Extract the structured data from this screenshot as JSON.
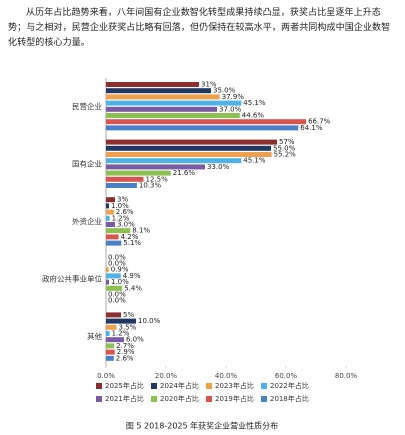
{
  "paragraph": "从历年占比趋势来看，八年间国有企业数智化转型成果持续凸显，获奖占比呈逐年上升态势；与之相对，民营企业获奖占比略有回落，但仍保持在较高水平，两者共同构成中国企业数智化转型的核心力量。",
  "chart_data": {
    "type": "hbar",
    "categories": [
      "民营企业",
      "国有企业",
      "外资企业",
      "政府公共事业单位",
      "其他"
    ],
    "xlim": [
      0,
      80
    ],
    "xticks": [
      {
        "value": 0,
        "label": "0.0%"
      },
      {
        "value": 20,
        "label": "20.0%"
      },
      {
        "value": 40,
        "label": "40.0%"
      },
      {
        "value": 60,
        "label": "60.0%"
      },
      {
        "value": 80,
        "label": "80.0%"
      }
    ],
    "series": [
      {
        "name": "2025年占比",
        "color": "#8b2f2f",
        "values": [
          31,
          57,
          3,
          0,
          5
        ],
        "value_labels": [
          "31%",
          "57%",
          "3%",
          "0.0%",
          "5%"
        ]
      },
      {
        "name": "2024年占比",
        "color": "#1f3864",
        "values": [
          35.0,
          55.0,
          1.0,
          0.0,
          10.0
        ],
        "value_labels": [
          "35.0%",
          "55.0%",
          "1.0%",
          "0.0%",
          "10.0%"
        ]
      },
      {
        "name": "2023年占比",
        "color": "#f0a04b",
        "values": [
          37.9,
          55.2,
          2.6,
          0.9,
          3.5
        ],
        "value_labels": [
          "37.9%",
          "55.2%",
          "2.6%",
          "0.9%",
          "3.5%"
        ]
      },
      {
        "name": "2022年占比",
        "color": "#4db3e6",
        "values": [
          45.1,
          45.1,
          1.2,
          4.9,
          1.2
        ],
        "value_labels": [
          "45.1%",
          "45.1%",
          "1.2%",
          "4.9%",
          "1.2%"
        ]
      },
      {
        "name": "2021年占比",
        "color": "#7b5aa6",
        "values": [
          37.0,
          33.0,
          3.0,
          1.0,
          6.0
        ],
        "value_labels": [
          "37.0%",
          "33.0%",
          "3.0%",
          "1.0%",
          "6.0%"
        ]
      },
      {
        "name": "2020年占比",
        "color": "#8cc152",
        "values": [
          44.6,
          21.6,
          8.1,
          5.4,
          2.7
        ],
        "value_labels": [
          "44.6%",
          "21.6%",
          "8.1%",
          "5.4%",
          "2.7%"
        ]
      },
      {
        "name": "2019年占比",
        "color": "#d9534f",
        "values": [
          66.7,
          12.5,
          4.2,
          0.0,
          2.9
        ],
        "value_labels": [
          "66.7%",
          "12.5%",
          "4.2%",
          "0.0%",
          "2.9%"
        ]
      },
      {
        "name": "2018年占比",
        "color": "#4a7fc9",
        "values": [
          64.1,
          10.3,
          5.1,
          0.0,
          2.6
        ],
        "value_labels": [
          "64.1%",
          "10.3%",
          "5.1%",
          "0.0%",
          "2.6%"
        ]
      }
    ]
  },
  "caption": "图 5 2018-2025 年获奖企业营业性质分布"
}
